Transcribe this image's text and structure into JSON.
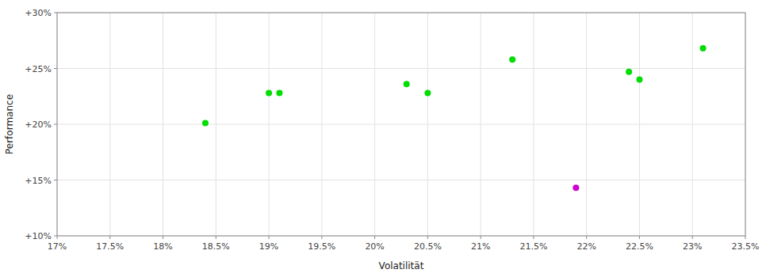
{
  "chart_data": {
    "type": "scatter",
    "xlabel": "Volatilität",
    "ylabel": "Performance",
    "xlim": [
      0.17,
      0.235
    ],
    "ylim": [
      0.1,
      0.3
    ],
    "xticks": [
      {
        "value": 0.17,
        "label": "17%"
      },
      {
        "value": 0.175,
        "label": "17.5%"
      },
      {
        "value": 0.18,
        "label": "18%"
      },
      {
        "value": 0.185,
        "label": "18.5%"
      },
      {
        "value": 0.19,
        "label": "19%"
      },
      {
        "value": 0.195,
        "label": "19.5%"
      },
      {
        "value": 0.2,
        "label": "20%"
      },
      {
        "value": 0.205,
        "label": "20.5%"
      },
      {
        "value": 0.21,
        "label": "21%"
      },
      {
        "value": 0.215,
        "label": "21.5%"
      },
      {
        "value": 0.22,
        "label": "22%"
      },
      {
        "value": 0.225,
        "label": "22.5%"
      },
      {
        "value": 0.23,
        "label": "23%"
      },
      {
        "value": 0.235,
        "label": "23.5%"
      }
    ],
    "yticks": [
      {
        "value": 0.1,
        "label": "+10%"
      },
      {
        "value": 0.15,
        "label": "+15%"
      },
      {
        "value": 0.2,
        "label": "+20%"
      },
      {
        "value": 0.25,
        "label": "+25%"
      },
      {
        "value": 0.3,
        "label": "+30%"
      }
    ],
    "grid": true,
    "series": [
      {
        "color": "#00dd00",
        "x": [
          0.184,
          0.19,
          0.191,
          0.203,
          0.205,
          0.213,
          0.224,
          0.225,
          0.231
        ],
        "values": [
          0.201,
          0.228,
          0.228,
          0.236,
          0.228,
          0.258,
          0.247,
          0.24,
          0.268
        ]
      },
      {
        "color": "#cc00cc",
        "x": [
          0.219
        ],
        "values": [
          0.143
        ]
      }
    ]
  }
}
